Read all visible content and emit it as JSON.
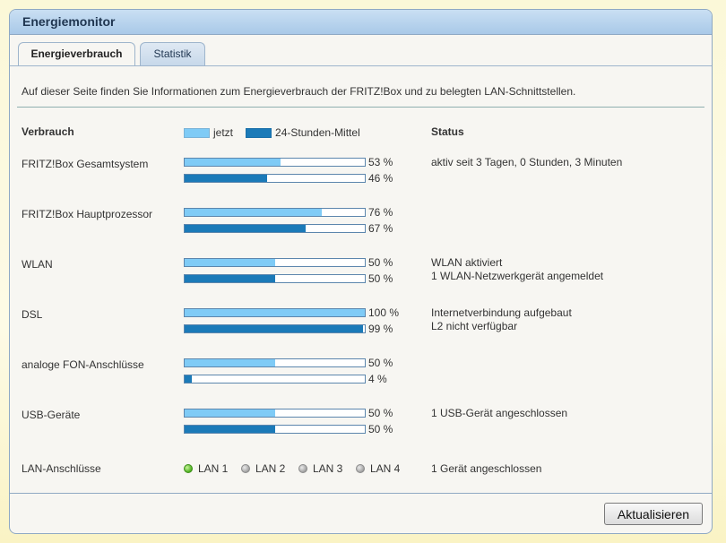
{
  "panel": {
    "title": "Energiemonitor"
  },
  "tabs": [
    {
      "label": "Energieverbrauch",
      "active": true
    },
    {
      "label": "Statistik",
      "active": false
    }
  ],
  "intro": "Auf dieser Seite finden Sie Informationen zum Energieverbrauch der FRITZ!Box und zu belegten LAN-Schnittstellen.",
  "header": {
    "consumption": "Verbrauch",
    "legend_now": "jetzt",
    "legend_avg": "24-Stunden-Mittel",
    "status": "Status"
  },
  "colors": {
    "now": "#7fcbf6",
    "avg": "#1b7ab8",
    "accent": "#a9c9e8"
  },
  "rows": [
    {
      "label": "FRITZ!Box Gesamtsystem",
      "now": 53,
      "now_text": "53 %",
      "avg": 46,
      "avg_text": "46 %",
      "status": [
        "aktiv seit 3 Tagen, 0 Stunden, 3 Minuten"
      ]
    },
    {
      "label": "FRITZ!Box Hauptprozessor",
      "now": 76,
      "now_text": "76 %",
      "avg": 67,
      "avg_text": "67 %",
      "status": []
    },
    {
      "label": "WLAN",
      "now": 50,
      "now_text": "50 %",
      "avg": 50,
      "avg_text": "50 %",
      "status": [
        "WLAN aktiviert",
        "1 WLAN-Netzwerkgerät angemeldet"
      ]
    },
    {
      "label": "DSL",
      "now": 100,
      "now_text": "100 %",
      "avg": 99,
      "avg_text": "99 %",
      "status": [
        "Internetverbindung aufgebaut",
        "L2 nicht verfügbar"
      ]
    },
    {
      "label": "analoge FON-Anschlüsse",
      "now": 50,
      "now_text": "50 %",
      "avg": 4,
      "avg_text": "4 %",
      "status": []
    },
    {
      "label": "USB-Geräte",
      "now": 50,
      "now_text": "50 %",
      "avg": 50,
      "avg_text": "50 %",
      "status": [
        "1 USB-Gerät angeschlossen"
      ]
    }
  ],
  "lan": {
    "label": "LAN-Anschlüsse",
    "ports": [
      {
        "name": "LAN 1",
        "active": true
      },
      {
        "name": "LAN 2",
        "active": false
      },
      {
        "name": "LAN 3",
        "active": false
      },
      {
        "name": "LAN 4",
        "active": false
      }
    ],
    "status": "1 Gerät angeschlossen"
  },
  "buttons": {
    "refresh": "Aktualisieren"
  }
}
